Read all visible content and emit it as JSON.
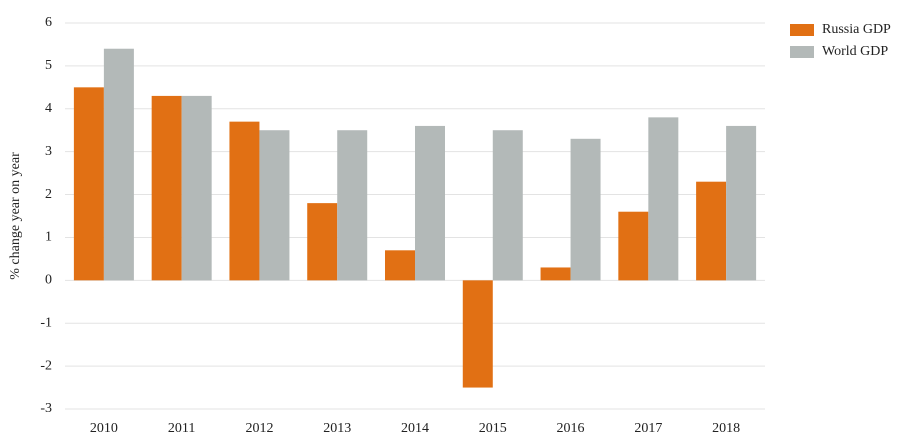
{
  "chart_data": {
    "type": "bar",
    "y_label": "% change year on year",
    "categories": [
      "2010",
      "2011",
      "2012",
      "2013",
      "2014",
      "2015",
      "2016",
      "2017",
      "2018"
    ],
    "series": [
      {
        "name": "Russia GDP",
        "color": "#e17014",
        "values": [
          4.5,
          4.3,
          3.7,
          1.8,
          0.7,
          -2.5,
          0.3,
          1.6,
          2.3
        ]
      },
      {
        "name": "World GDP",
        "color": "#b3b9b8",
        "values": [
          5.4,
          4.3,
          3.5,
          3.5,
          3.6,
          3.5,
          3.3,
          3.8,
          3.6
        ]
      }
    ],
    "ylim": [
      -3,
      6
    ],
    "yticks": [
      -3,
      -2,
      -1,
      0,
      1,
      2,
      3,
      4,
      5,
      6
    ],
    "grid": true,
    "legend": "top-right"
  }
}
